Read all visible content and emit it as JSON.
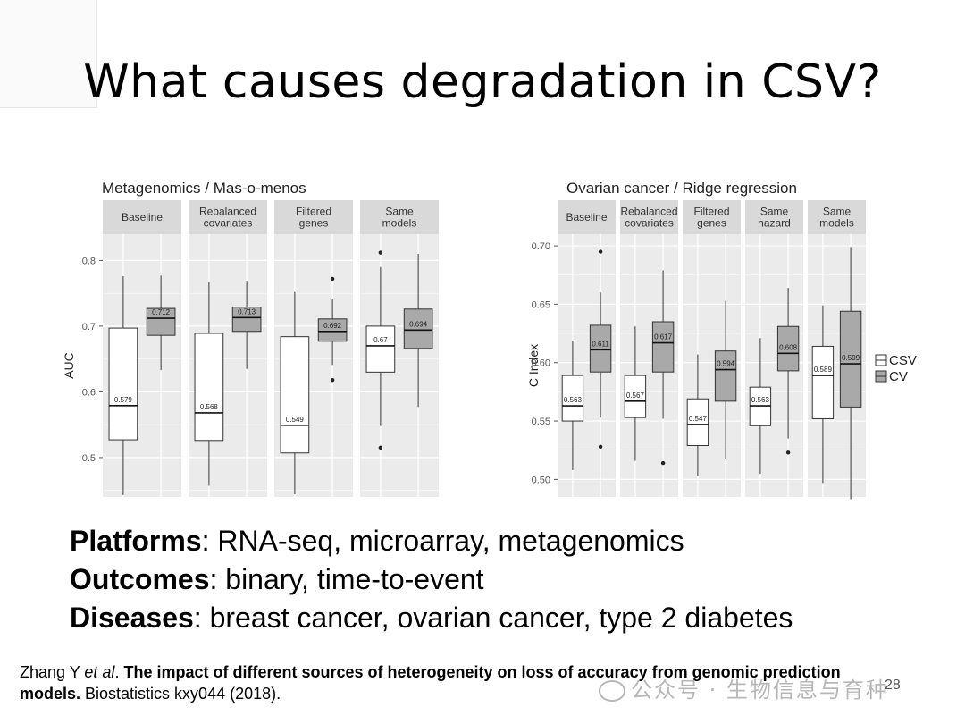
{
  "slide": {
    "title": "What causes degradation in CSV?",
    "bullets": [
      {
        "label": "Platforms",
        "text": ": RNA-seq, microarray, metagenomics"
      },
      {
        "label": "Outcomes",
        "text": ": binary, time-to-event"
      },
      {
        "label": "Diseases",
        "text": ": breast cancer, ovarian cancer, type 2 diabetes"
      }
    ],
    "citation": {
      "authors": "Zhang Y ",
      "etal": "et al",
      "dot": ". ",
      "bold_title": "The impact of different sources of heterogeneity on loss of accuracy from genomic prediction models.",
      "rest": " Biostatistics kxy044 (2018)."
    },
    "watermark": "公众号 · 生物信息与育种",
    "page_number": "28"
  },
  "colors": {
    "panel_bg": "#ebebeb",
    "strip_bg": "#d9d9d9",
    "grid": "#ffffff",
    "csv_fill": "#ffffff",
    "cv_fill": "#a9a9a9"
  },
  "chart_data": [
    {
      "type": "box",
      "title": "Metagenomics / Mas-o-menos",
      "ylabel": "AUC",
      "ylim": [
        0.44,
        0.84
      ],
      "yticks": [
        0.5,
        0.6,
        0.7,
        0.8
      ],
      "ytick_labels": [
        "0.5",
        "0.6",
        "0.7",
        "0.8"
      ],
      "facets": [
        {
          "label": [
            "Baseline"
          ],
          "boxes": [
            {
              "series": "CSV",
              "whislo": 0.443,
              "q1": 0.527,
              "med": 0.579,
              "q3": 0.697,
              "whishi": 0.776,
              "fliers": [],
              "label": "0.579"
            },
            {
              "series": "CV",
              "whislo": 0.633,
              "q1": 0.686,
              "med": 0.712,
              "q3": 0.727,
              "whishi": 0.777,
              "fliers": [],
              "label": "0.712"
            }
          ]
        },
        {
          "label": [
            "Rebalanced",
            "covariates"
          ],
          "boxes": [
            {
              "series": "CSV",
              "whislo": 0.457,
              "q1": 0.526,
              "med": 0.568,
              "q3": 0.689,
              "whishi": 0.767,
              "fliers": [],
              "label": "0.568"
            },
            {
              "series": "CV",
              "whislo": 0.635,
              "q1": 0.692,
              "med": 0.713,
              "q3": 0.729,
              "whishi": 0.769,
              "fliers": [],
              "label": "0.713"
            }
          ]
        },
        {
          "label": [
            "Filtered",
            "genes"
          ],
          "boxes": [
            {
              "series": "CSV",
              "whislo": 0.444,
              "q1": 0.507,
              "med": 0.549,
              "q3": 0.684,
              "whishi": 0.752,
              "fliers": [],
              "label": "0.549"
            },
            {
              "series": "CV",
              "whislo": 0.641,
              "q1": 0.677,
              "med": 0.692,
              "q3": 0.711,
              "whishi": 0.742,
              "fliers": [
                0.618,
                0.772
              ],
              "label": "0.692"
            }
          ]
        },
        {
          "label": [
            "Same",
            "models"
          ],
          "boxes": [
            {
              "series": "CSV",
              "whislo": 0.548,
              "q1": 0.63,
              "med": 0.67,
              "q3": 0.7,
              "whishi": 0.79,
              "fliers": [
                0.515,
                0.812
              ],
              "label": "0.67"
            },
            {
              "series": "CV",
              "whislo": 0.577,
              "q1": 0.666,
              "med": 0.694,
              "q3": 0.726,
              "whishi": 0.81,
              "fliers": [],
              "label": "0.694"
            }
          ]
        }
      ]
    },
    {
      "type": "box",
      "title": "Ovarian cancer / Ridge regression",
      "ylabel": "C Index",
      "ylim": [
        0.485,
        0.71
      ],
      "yticks": [
        0.5,
        0.55,
        0.6,
        0.65,
        0.7
      ],
      "ytick_labels": [
        "0.50",
        "0.55",
        "0.60",
        "0.65",
        "0.70"
      ],
      "legend": [
        {
          "name": "CSV",
          "key": "csv_fill"
        },
        {
          "name": "CV",
          "key": "cv_fill"
        }
      ],
      "legend_position": "right",
      "facets": [
        {
          "label": [
            "Baseline"
          ],
          "boxes": [
            {
              "series": "CSV",
              "whislo": 0.508,
              "q1": 0.55,
              "med": 0.563,
              "q3": 0.589,
              "whishi": 0.619,
              "fliers": [],
              "label": "0.563"
            },
            {
              "series": "CV",
              "whislo": 0.553,
              "q1": 0.592,
              "med": 0.611,
              "q3": 0.632,
              "whishi": 0.66,
              "fliers": [
                0.528,
                0.695
              ],
              "label": "0.611"
            }
          ]
        },
        {
          "label": [
            "Rebalanced",
            "covariates"
          ],
          "boxes": [
            {
              "series": "CSV",
              "whislo": 0.516,
              "q1": 0.553,
              "med": 0.567,
              "q3": 0.589,
              "whishi": 0.631,
              "fliers": [],
              "label": "0.567"
            },
            {
              "series": "CV",
              "whislo": 0.552,
              "q1": 0.592,
              "med": 0.617,
              "q3": 0.635,
              "whishi": 0.679,
              "fliers": [
                0.514
              ],
              "label": "0.617"
            }
          ]
        },
        {
          "label": [
            "Filtered",
            "genes"
          ],
          "boxes": [
            {
              "series": "CSV",
              "whislo": 0.503,
              "q1": 0.529,
              "med": 0.547,
              "q3": 0.569,
              "whishi": 0.607,
              "fliers": [],
              "label": "0.547"
            },
            {
              "series": "CV",
              "whislo": 0.518,
              "q1": 0.567,
              "med": 0.594,
              "q3": 0.61,
              "whishi": 0.653,
              "fliers": [],
              "label": "0.594"
            }
          ]
        },
        {
          "label": [
            "Same",
            "hazard"
          ],
          "boxes": [
            {
              "series": "CSV",
              "whislo": 0.505,
              "q1": 0.546,
              "med": 0.563,
              "q3": 0.579,
              "whishi": 0.621,
              "fliers": [],
              "label": "0.563"
            },
            {
              "series": "CV",
              "whislo": 0.535,
              "q1": 0.593,
              "med": 0.608,
              "q3": 0.631,
              "whishi": 0.664,
              "fliers": [
                0.523
              ],
              "label": "0.608"
            }
          ]
        },
        {
          "label": [
            "Same",
            "models"
          ],
          "boxes": [
            {
              "series": "CSV",
              "whislo": 0.497,
              "q1": 0.552,
              "med": 0.589,
              "q3": 0.614,
              "whishi": 0.649,
              "fliers": [],
              "label": "0.589"
            },
            {
              "series": "CV",
              "whislo": 0.483,
              "q1": 0.562,
              "med": 0.599,
              "q3": 0.644,
              "whishi": 0.699,
              "fliers": [],
              "label": "0.599"
            }
          ]
        }
      ]
    }
  ]
}
